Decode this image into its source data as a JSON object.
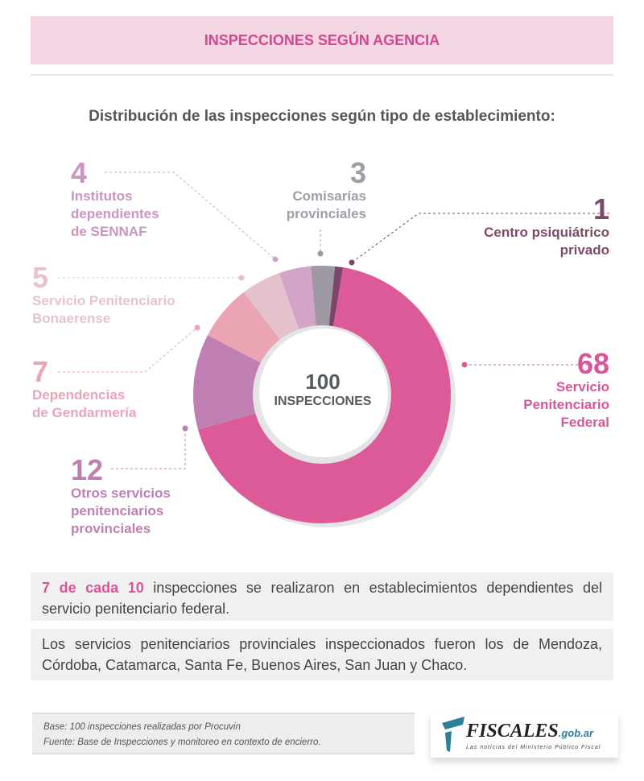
{
  "header": {
    "title": "INSPECCIONES SEGÚN AGENCIA"
  },
  "subtitle": "Distribución de las inspecciones según tipo de establecimiento:",
  "chart_data": {
    "type": "pie",
    "title": "Distribución de las inspecciones según tipo de establecimiento:",
    "center_value": "100",
    "center_label": "INSPECCIONES",
    "slices": [
      {
        "label": "Comisarías provinciales",
        "value": 3,
        "color": "#9d98a2"
      },
      {
        "label": "Centro psiquiátrico privado",
        "value": 1,
        "color": "#7c4466"
      },
      {
        "label": "Servicio Penitenciario Federal",
        "value": 68,
        "color": "#dd5a99"
      },
      {
        "label": "Otros servicios penitenciarios provinciales",
        "value": 12,
        "color": "#c07fb3"
      },
      {
        "label": "Dependencias de Gendarmería",
        "value": 7,
        "color": "#eba4b3"
      },
      {
        "label": "Servicio Penitenciario Bonaerense",
        "value": 5,
        "color": "#e3c2cb"
      },
      {
        "label": "Institutos dependientes de SENNAF",
        "value": 4,
        "color": "#d3a3c8"
      }
    ]
  },
  "labels": {
    "sennaf": {
      "num": "4",
      "text": [
        "Institutos",
        "dependientes",
        "de SENNAF"
      ]
    },
    "comisarias": {
      "num": "3",
      "text": [
        "Comisarías",
        "provinciales"
      ]
    },
    "psiq": {
      "num": "1",
      "text": [
        "Centro psiquiátrico",
        "privado"
      ]
    },
    "bonaerense": {
      "num": "5",
      "text": [
        "Servicio Penitenciario",
        "Bonaerense"
      ]
    },
    "gendarmeria": {
      "num": "7",
      "text": [
        "Dependencias",
        "de Gendarmería"
      ]
    },
    "federal": {
      "num": "68",
      "text": [
        "Servicio",
        "Penitenciario",
        "Federal"
      ]
    },
    "otros": {
      "num": "12",
      "text": [
        "Otros servicios",
        "penitenciarios",
        "provinciales"
      ]
    }
  },
  "notes": {
    "n1_highlight": "7 de cada 10",
    "n1_rest": " inspecciones se realizaron en establecimientos dependientes del servicio penitenciario federal.",
    "n2": "Los servicios penitenciarios provinciales inspeccionados fueron los de Mendoza, Córdoba, Catamarca, Santa Fe, Buenos Aires, San Juan y Chaco."
  },
  "footer": {
    "base": "Base: 100 inspecciones realizadas por Procuvin",
    "fuente": "Fuente: Base de Inspecciones y monitoreo en contexto de encierro."
  },
  "logo": {
    "name": "FISCALES",
    "domain": ".gob.ar",
    "tagline": "Las noticias del Ministerio Público Fiscal"
  }
}
